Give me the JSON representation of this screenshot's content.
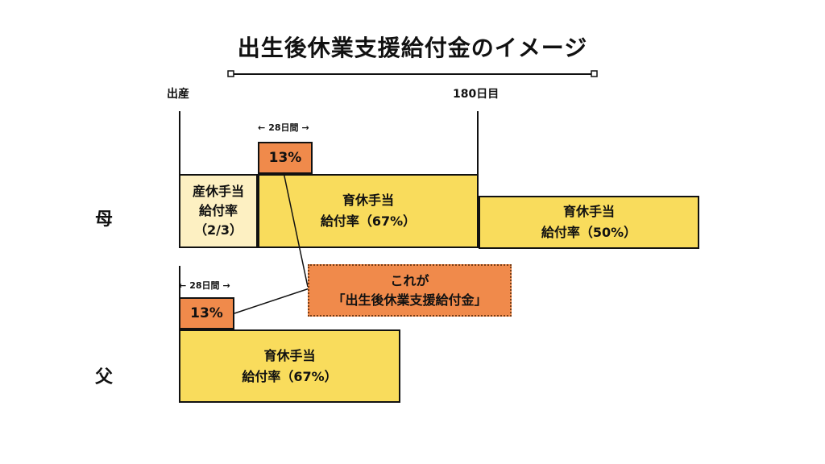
{
  "title": "出生後休業支援給付金のイメージ",
  "timeline": {
    "start_label": "出産",
    "end_label": "180日目"
  },
  "mother": {
    "label": "母",
    "maternity": {
      "line1": "産休手当",
      "line2": "給付率",
      "line3": "（2/3）"
    },
    "childcare1": {
      "line1": "育休手当",
      "line2": "給付率（67%）"
    },
    "childcare2": {
      "line1": "育休手当",
      "line2": "給付率（50%）"
    },
    "bonus": {
      "value": "13%",
      "duration": "28日間"
    }
  },
  "father": {
    "label": "父",
    "childcare": {
      "line1": "育休手当",
      "line2": "給付率（67%）"
    },
    "bonus": {
      "value": "13%",
      "duration": "28日間"
    }
  },
  "callout": {
    "line1": "これが",
    "line2": "「出生後休業支援給付金」"
  },
  "colors": {
    "yellow": "#f9dc5c",
    "light_yellow": "#fdf0c2",
    "orange": "#f08a4b"
  }
}
